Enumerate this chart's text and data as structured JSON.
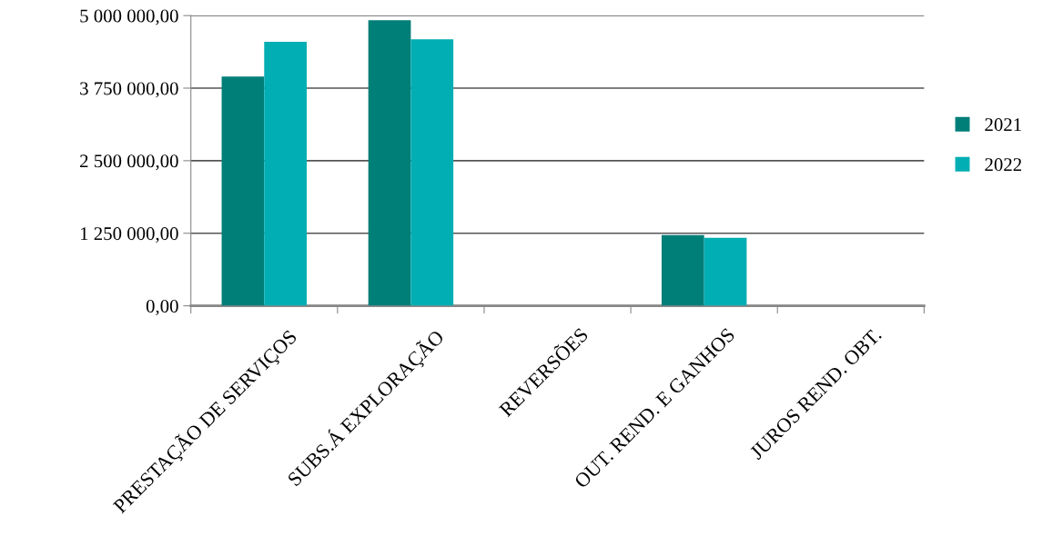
{
  "chart_data": {
    "type": "bar",
    "categories": [
      "PRESTAÇÃO DE SERVIÇOS",
      "SUBS.Á EXPLORAÇÃO",
      "REVERSÕES",
      "OUT. REND. E GANHOS",
      "JUROS REND. OBT."
    ],
    "series": [
      {
        "name": "2021",
        "color": "#007e78",
        "values": [
          3950000,
          4920000,
          0,
          1220000,
          0
        ]
      },
      {
        "name": "2022",
        "color": "#00aeb3",
        "values": [
          4550000,
          4590000,
          0,
          1170000,
          0
        ]
      }
    ],
    "ylim": [
      0,
      5000000
    ],
    "yticks": [
      {
        "value": 0,
        "label": "0,00"
      },
      {
        "value": 1250000,
        "label": "1 250 000,00"
      },
      {
        "value": 2500000,
        "label": "2 500 000,00"
      },
      {
        "value": 3750000,
        "label": "3 750 000,00"
      },
      {
        "value": 5000000,
        "label": "5 000 000,00"
      }
    ],
    "grid": "y",
    "legend": "right"
  }
}
